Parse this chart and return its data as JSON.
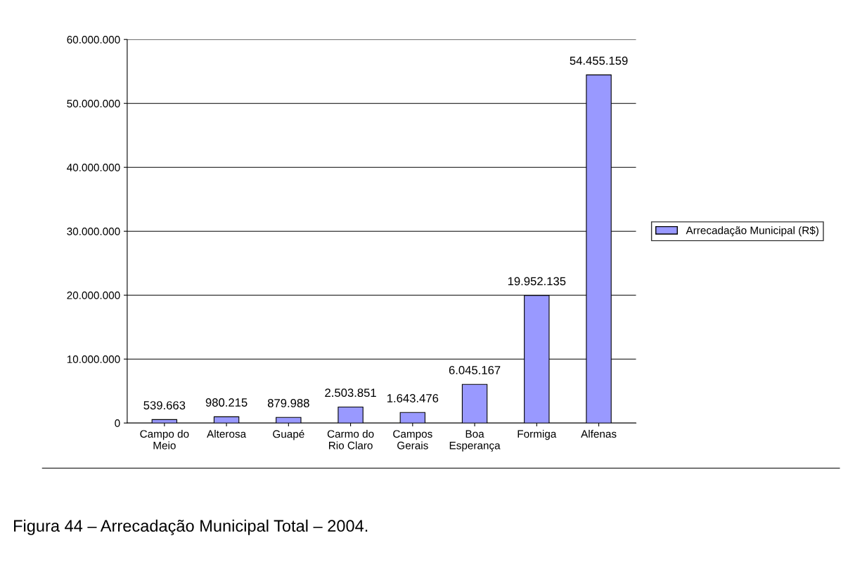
{
  "chart_data": {
    "type": "bar",
    "categories": [
      "Campo do\nMeio",
      "Alterosa",
      "Guapé",
      "Carmo do\nRio Claro",
      "Campos\nGerais",
      "Boa\nEsperança",
      "Formiga",
      "Alfenas"
    ],
    "series": [
      {
        "name": "Arrecadação Municipal (R$)",
        "color": "#9999ff",
        "values": [
          539663,
          980215,
          879988,
          2503851,
          1643476,
          6045167,
          19952135,
          54455159
        ],
        "value_labels": [
          "539.663",
          "980.215",
          "879.988",
          "2.503.851",
          "1.643.476",
          "6.045.167",
          "19.952.135",
          "54.455.159"
        ]
      }
    ],
    "ylim": [
      0,
      60000000
    ],
    "yticks": [
      0,
      {
        "value": 10000000,
        "label": "10.000.000"
      },
      {
        "value": 20000000,
        "label": "20.000.000"
      },
      {
        "value": 30000000,
        "label": "30.000.000"
      },
      {
        "value": 40000000,
        "label": "40.000.000"
      },
      {
        "value": 50000000,
        "label": "50.000.000"
      },
      {
        "value": 60000000,
        "label": "60.000.000"
      }
    ],
    "grid": "y",
    "legend": "right",
    "annotations": [
      "Figura 44 – Arrecadação Municipal Total – 2004."
    ]
  }
}
